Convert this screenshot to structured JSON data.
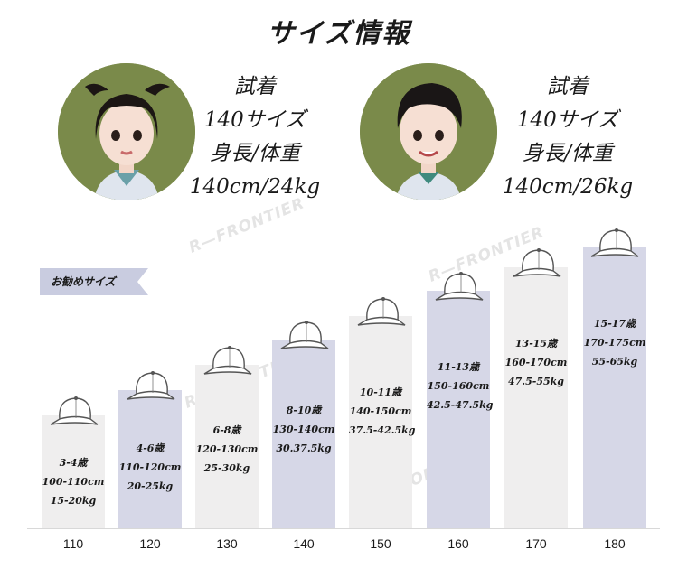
{
  "title": "サイズ情報",
  "watermark": "R—FRONTIER",
  "recommend_label": "お勧めサイズ",
  "models": [
    {
      "line1": "試着",
      "line2": "140サイズ",
      "line3": "身長/体重",
      "line4": "140cm/24kg"
    },
    {
      "line1": "試着",
      "line2": "140サイズ",
      "line3": "身長/体重",
      "line4": "140cm/26kg"
    }
  ],
  "sizes": [
    {
      "label": "110",
      "age": "3-4歳",
      "height": "100-110cm",
      "weight": "15-20kg"
    },
    {
      "label": "120",
      "age": "4-6歳",
      "height": "110-120cm",
      "weight": "20-25kg"
    },
    {
      "label": "130",
      "age": "6-8歳",
      "height": "120-130cm",
      "weight": "25-30kg"
    },
    {
      "label": "140",
      "age": "8-10歳",
      "height": "130-140cm",
      "weight": "30.37.5kg"
    },
    {
      "label": "150",
      "age": "10-11歳",
      "height": "140-150cm",
      "weight": "37.5-42.5kg"
    },
    {
      "label": "160",
      "age": "11-13歳",
      "height": "150-160cm",
      "weight": "42.5-47.5kg"
    },
    {
      "label": "170",
      "age": "13-15歳",
      "height": "160-170cm",
      "weight": "47.5-55kg"
    },
    {
      "label": "180",
      "age": "15-17歳",
      "height": "170-175cm",
      "weight": "55-65kg"
    }
  ],
  "colors": {
    "bar_light": "#efeeee",
    "bar_blue": "#d6d7e7",
    "tag": "#c9cce0",
    "avatar_bg": "#7a8a4a"
  },
  "icons": {
    "bar_top": "baseball-cap-icon"
  }
}
